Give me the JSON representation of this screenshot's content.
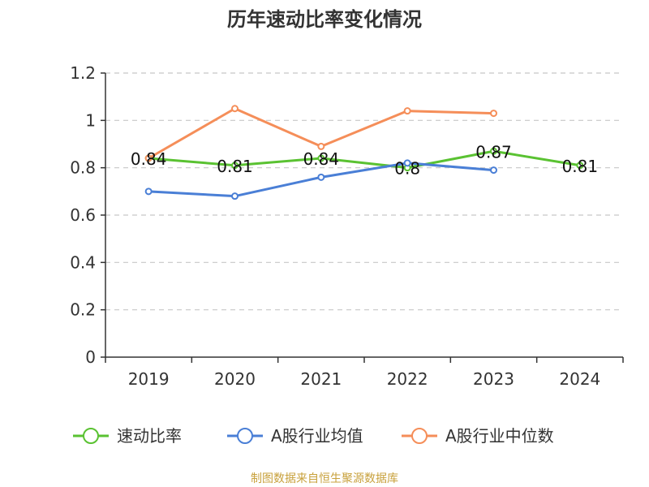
{
  "chart_data": {
    "type": "line",
    "title": "历年速动比率变化情况",
    "categories": [
      "2019",
      "2020",
      "2021",
      "2022",
      "2023",
      "2024"
    ],
    "ylim": [
      0,
      1.2
    ],
    "yticks": [
      "0",
      "0.2",
      "0.4",
      "0.6",
      "0.8",
      "1",
      "1.2"
    ],
    "grid": true,
    "legend_position": "bottom",
    "series": [
      {
        "name": "速动比率",
        "color": "#5ac232",
        "values": [
          0.84,
          0.81,
          0.84,
          0.8,
          0.87,
          0.81
        ],
        "labels": [
          "0.84",
          "0.81",
          "0.84",
          "0.8",
          "0.87",
          "0.81"
        ],
        "show_labels": true
      },
      {
        "name": "A股行业均值",
        "color": "#4a7fd6",
        "values": [
          0.7,
          0.68,
          0.76,
          0.82,
          0.79,
          null
        ],
        "show_labels": false
      },
      {
        "name": "A股行业中位数",
        "color": "#f58e59",
        "values": [
          0.84,
          1.05,
          0.89,
          1.04,
          1.03,
          null
        ],
        "show_labels": false
      }
    ],
    "source": "制图数据来自恒生聚源数据库"
  }
}
